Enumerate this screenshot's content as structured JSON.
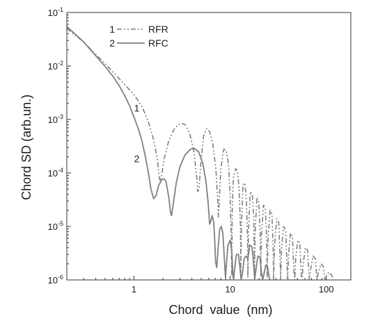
{
  "chart_data": {
    "type": "line",
    "title": "",
    "xlabel": "Chord  value  (nm)",
    "ylabel": "Chord SD (arb.un.)",
    "x_scale": "log",
    "y_scale": "log",
    "xlim": [
      0.2,
      180
    ],
    "ylim": [
      1e-06,
      0.1
    ],
    "grid": false,
    "legend_position": "top-left",
    "x_ticks": [
      {
        "value": 1,
        "label": "1"
      },
      {
        "value": 10,
        "label": "10"
      },
      {
        "value": 100,
        "label": "100"
      }
    ],
    "y_ticks": [
      {
        "value": 1e-06,
        "base": "10",
        "exp": "-6"
      },
      {
        "value": 1e-05,
        "base": "10",
        "exp": "-5"
      },
      {
        "value": 0.0001,
        "base": "10",
        "exp": "-4"
      },
      {
        "value": 0.001,
        "base": "10",
        "exp": "-3"
      },
      {
        "value": 0.01,
        "base": "10",
        "exp": "-2"
      },
      {
        "value": 0.1,
        "base": "10",
        "exp": "-1"
      }
    ],
    "series": [
      {
        "name": "RFR",
        "number": "1",
        "style": "dash-dot-dot",
        "color": "#7f7f7f",
        "label_at": [
          1.0,
          0.0014
        ],
        "points": [
          [
            0.2,
            0.05
          ],
          [
            0.3,
            0.028
          ],
          [
            0.4,
            0.0165
          ],
          [
            0.5,
            0.011
          ],
          [
            0.6,
            0.0078
          ],
          [
            0.7,
            0.0058
          ],
          [
            0.8,
            0.0045
          ],
          [
            1.0,
            0.0029
          ],
          [
            1.2,
            0.0018
          ],
          [
            1.4,
            0.00095
          ],
          [
            1.6,
            0.00042
          ],
          [
            1.75,
            0.00018
          ],
          [
            1.82,
            8.8e-05
          ],
          [
            1.87,
            7e-05
          ],
          [
            1.93,
            8.5e-05
          ],
          [
            2.05,
            0.00018
          ],
          [
            2.3,
            0.0004
          ],
          [
            2.6,
            0.00065
          ],
          [
            2.9,
            0.0008
          ],
          [
            3.1,
            0.00085
          ],
          [
            3.4,
            0.0008
          ],
          [
            3.8,
            0.00055
          ],
          [
            4.2,
            0.00025
          ],
          [
            4.5,
            8e-05
          ],
          [
            4.6,
            4.5e-05
          ],
          [
            4.75,
            5e-05
          ],
          [
            4.95,
            0.00015
          ],
          [
            5.3,
            0.0005
          ],
          [
            5.7,
            0.00068
          ],
          [
            6.1,
            0.0006
          ],
          [
            6.6,
            0.00035
          ],
          [
            7.1,
            0.00012
          ],
          [
            7.4,
            3.5e-05
          ],
          [
            7.55,
            1.5e-05
          ],
          [
            7.7,
            3e-05
          ],
          [
            8.0,
            0.00012
          ],
          [
            8.6,
            0.00028
          ],
          [
            9.1,
            0.00026
          ],
          [
            9.6,
            0.00015
          ],
          [
            10.0,
            4e-05
          ],
          [
            10.2,
            8e-06
          ],
          [
            10.4,
            1.2e-06
          ],
          [
            10.5,
            2e-05
          ],
          [
            10.8,
            8e-05
          ],
          [
            11.4,
            0.00012
          ],
          [
            11.9,
            0.00011
          ],
          [
            12.4,
            5e-05
          ],
          [
            12.8,
            1e-05
          ],
          [
            12.9,
            1.2e-06
          ],
          [
            13.1,
            1e-05
          ],
          [
            13.6,
            6e-05
          ],
          [
            14.2,
            6.5e-05
          ],
          [
            14.8,
            3e-05
          ],
          [
            15.2,
            5e-06
          ],
          [
            15.3,
            1.1e-06
          ],
          [
            15.5,
            8e-06
          ],
          [
            16.2,
            4.5e-05
          ],
          [
            17.0,
            4e-05
          ],
          [
            17.6,
            1.5e-05
          ],
          [
            17.9,
            1.2e-06
          ],
          [
            18.2,
            8e-06
          ],
          [
            19.0,
            3.5e-05
          ],
          [
            19.8,
            3e-05
          ],
          [
            20.5,
            8e-06
          ],
          [
            20.8,
            1.2e-06
          ],
          [
            21.2,
            7e-06
          ],
          [
            22.2,
            2.5e-05
          ],
          [
            23.2,
            2.2e-05
          ],
          [
            24.0,
            6e-06
          ],
          [
            24.3,
            1.1e-06
          ],
          [
            24.8,
            6e-06
          ],
          [
            26.0,
            2e-05
          ],
          [
            27.2,
            1.7e-05
          ],
          [
            28.0,
            4e-06
          ],
          [
            28.3,
            1e-06
          ],
          [
            29.0,
            4.5e-06
          ],
          [
            30.5,
            1.4e-05
          ],
          [
            32.0,
            1.2e-05
          ],
          [
            33.0,
            3e-06
          ],
          [
            33.5,
            1e-06
          ],
          [
            34.3,
            4e-06
          ],
          [
            36.0,
            1e-05
          ],
          [
            37.8,
            8.5e-06
          ],
          [
            39.0,
            2e-06
          ],
          [
            39.6,
            1e-06
          ],
          [
            40.5,
            3e-06
          ],
          [
            42.5,
            7.5e-06
          ],
          [
            44.5,
            6.5e-06
          ],
          [
            46.0,
            1.5e-06
          ],
          [
            47.0,
            1e-06
          ],
          [
            48.0,
            2.5e-06
          ],
          [
            50.5,
            5.5e-06
          ],
          [
            53.0,
            5e-06
          ],
          [
            55.0,
            1.2e-06
          ],
          [
            56.0,
            1e-06
          ],
          [
            57.5,
            2e-06
          ],
          [
            60.5,
            4e-06
          ],
          [
            64.0,
            3.6e-06
          ],
          [
            66.5,
            1e-06
          ],
          [
            68.5,
            1.5e-06
          ],
          [
            73.0,
            2.8e-06
          ],
          [
            77.0,
            2.5e-06
          ],
          [
            80.0,
            1e-06
          ],
          [
            83.0,
            1.4e-06
          ],
          [
            88.0,
            2e-06
          ],
          [
            93.0,
            1.8e-06
          ],
          [
            97.0,
            1e-06
          ],
          [
            102.0,
            1.3e-06
          ],
          [
            108.0,
            1.4e-06
          ],
          [
            114.0,
            1.2e-06
          ],
          [
            120.0,
            1e-06
          ]
        ]
      },
      {
        "name": "RFC",
        "number": "2",
        "style": "solid",
        "color": "#7f7f7f",
        "label_at": [
          1.0,
          0.00016
        ],
        "points": [
          [
            0.2,
            0.055
          ],
          [
            0.3,
            0.028
          ],
          [
            0.4,
            0.0155
          ],
          [
            0.5,
            0.0098
          ],
          [
            0.6,
            0.0065
          ],
          [
            0.7,
            0.0043
          ],
          [
            0.8,
            0.0028
          ],
          [
            0.9,
            0.0018
          ],
          [
            1.0,
            0.0011
          ],
          [
            1.1,
            0.0007
          ],
          [
            1.2,
            0.00042
          ],
          [
            1.3,
            0.00022
          ],
          [
            1.4,
            0.00011
          ],
          [
            1.5,
            5e-05
          ],
          [
            1.6,
            3.3e-05
          ],
          [
            1.7,
            3.8e-05
          ],
          [
            1.8,
            5.8e-05
          ],
          [
            1.95,
            7.5e-05
          ],
          [
            2.05,
            7.8e-05
          ],
          [
            2.15,
            7e-05
          ],
          [
            2.3,
            3.5e-05
          ],
          [
            2.4,
            1.8e-05
          ],
          [
            2.46,
            1.6e-05
          ],
          [
            2.55,
            2.5e-05
          ],
          [
            2.75,
            6.5e-05
          ],
          [
            3.0,
            0.00013
          ],
          [
            3.4,
            0.00022
          ],
          [
            3.9,
            0.00028
          ],
          [
            4.2,
            0.00029
          ],
          [
            4.7,
            0.00025
          ],
          [
            5.2,
            0.00015
          ],
          [
            5.6,
            7e-05
          ],
          [
            5.9,
            2.8e-05
          ],
          [
            6.05,
            1.5e-05
          ],
          [
            6.12,
            1.1e-05
          ],
          [
            6.25,
            1.2e-05
          ],
          [
            6.5,
            1.6e-05
          ],
          [
            6.75,
            1.2e-05
          ],
          [
            6.9,
            6e-06
          ],
          [
            7.05,
            2.2e-06
          ],
          [
            7.25,
            1.7e-06
          ],
          [
            7.5,
            4e-06
          ],
          [
            7.8,
            9e-06
          ],
          [
            8.1,
            1e-05
          ],
          [
            8.4,
            7.5e-06
          ],
          [
            8.7,
            2.5e-06
          ],
          [
            8.95,
            1.1e-06
          ],
          [
            9.1,
            1.8e-06
          ],
          [
            9.5,
            4.5e-06
          ],
          [
            10.0,
            5.5e-06
          ],
          [
            10.4,
            3.5e-06
          ],
          [
            10.7,
            1.2e-06
          ],
          [
            10.85,
            1e-06
          ],
          [
            11.1,
            1.5e-06
          ],
          [
            11.6,
            3e-06
          ],
          [
            12.2,
            3e-06
          ],
          [
            12.7,
            1.6e-06
          ],
          [
            13.0,
            1e-06
          ],
          [
            13.4,
            1.3e-06
          ],
          [
            14.0,
            2.5e-06
          ],
          [
            14.6,
            2.8e-06
          ],
          [
            15.3,
            2.5e-06
          ],
          [
            16.0,
            4.5e-06
          ],
          [
            16.8,
            4.2e-06
          ],
          [
            17.4,
            2.5e-06
          ],
          [
            18.0,
            1e-06
          ],
          [
            18.5,
            1.5e-06
          ],
          [
            19.4,
            2.8e-06
          ],
          [
            20.4,
            2.6e-06
          ],
          [
            21.2,
            1.4e-06
          ],
          [
            21.8,
            1e-06
          ],
          [
            22.5,
            1.3e-06
          ],
          [
            23.5,
            1.9e-06
          ],
          [
            24.6,
            1.7e-06
          ],
          [
            25.5,
            1.1e-06
          ],
          [
            26.0,
            1e-06
          ]
        ]
      }
    ]
  }
}
